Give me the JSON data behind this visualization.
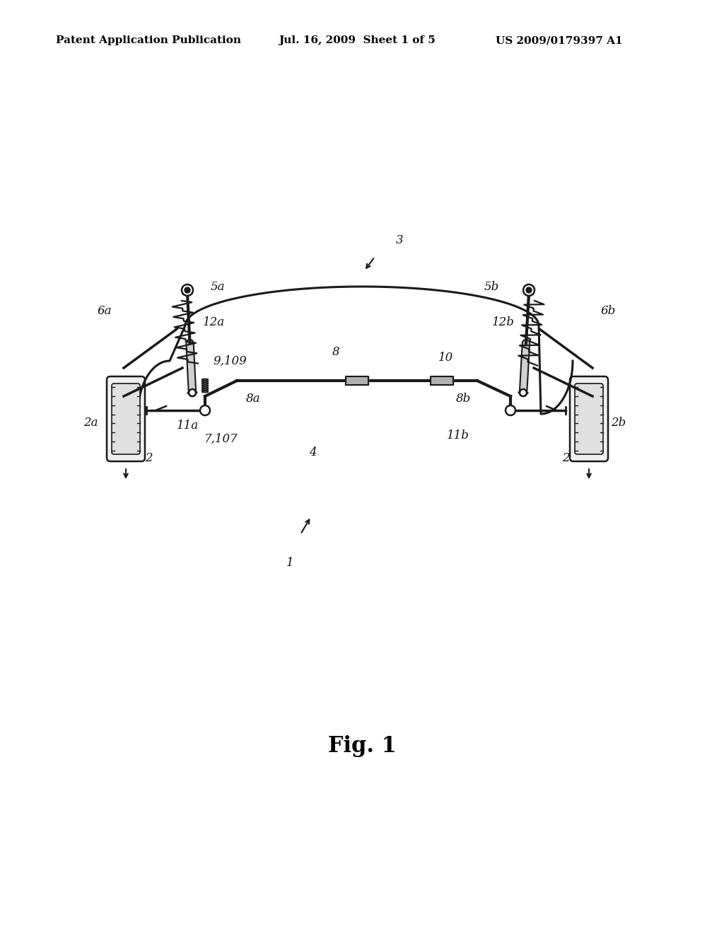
{
  "bg_color": "#ffffff",
  "header_left": "Patent Application Publication",
  "header_mid": "Jul. 16, 2009  Sheet 1 of 5",
  "header_right": "US 2009/0179397 A1",
  "fig_label": "Fig. 1",
  "header_fontsize": 11,
  "fig_label_fontsize": 22,
  "line_color": "#1a1a1a",
  "fill_light": "#e8e8e8",
  "fill_mid": "#c8c8c8"
}
